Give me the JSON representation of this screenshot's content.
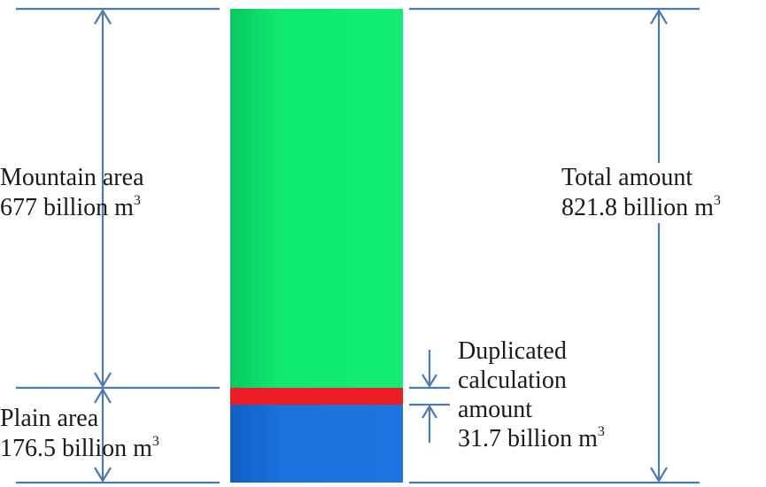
{
  "mountain": {
    "line1": "Mountain area",
    "value": "677 billion m",
    "unit_sup": "3"
  },
  "plain": {
    "line1": "Plain area",
    "value": "176.5 billion m",
    "unit_sup": "3"
  },
  "total": {
    "line1": "Total amount",
    "value": "821.8 billion m",
    "unit_sup": "3"
  },
  "duplicated": {
    "line1": "Duplicated",
    "line2": "calculation",
    "line3": "amount",
    "value": "31.7 billion m",
    "unit_sup": "3"
  },
  "colors": {
    "mountain": "#10e870",
    "overlap": "#ee1c24",
    "plain": "#1a6fd6",
    "dimension_lines": "#4a7ab8"
  }
}
